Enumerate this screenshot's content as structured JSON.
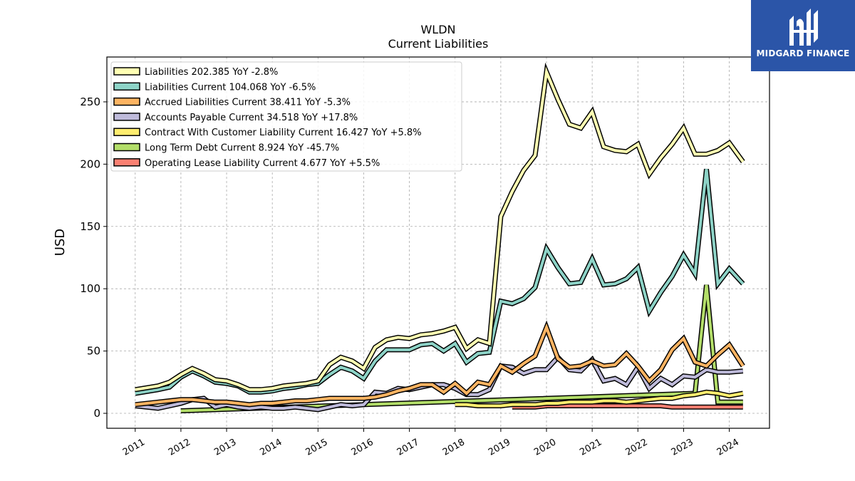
{
  "brand": {
    "name": "MIDGARD FINANCE",
    "color": "#2b55a8"
  },
  "chart_data": {
    "type": "line",
    "title": "WLDN",
    "subtitle": "Current  Liabilities",
    "ylabel": "USD",
    "xlabel": "",
    "ylim": [
      -12,
      286
    ],
    "xlim": [
      2010.38,
      2024.88
    ],
    "yticks": [
      0,
      50,
      100,
      150,
      200,
      250
    ],
    "xticks": [
      "2011",
      "2012",
      "2013",
      "2014",
      "2015",
      "2016",
      "2017",
      "2018",
      "2019",
      "2020",
      "2021",
      "2022",
      "2023",
      "2024"
    ],
    "grid": true,
    "legend_position": "top-left",
    "series": [
      {
        "name": "Liabilities  202.385 YoY -2.8%",
        "color": "#ffffb3",
        "x": [
          2011.0,
          2011.5,
          2011.75,
          2012.0,
          2012.25,
          2012.5,
          2012.75,
          2013.0,
          2013.25,
          2013.5,
          2013.75,
          2014.0,
          2014.25,
          2014.5,
          2014.75,
          2015.0,
          2015.25,
          2015.5,
          2015.75,
          2016.0,
          2016.25,
          2016.5,
          2016.75,
          2017.0,
          2017.25,
          2017.5,
          2017.75,
          2018.0,
          2018.25,
          2018.5,
          2018.75,
          2019.0,
          2019.25,
          2019.5,
          2019.75,
          2020.0,
          2020.25,
          2020.5,
          2020.75,
          2021.0,
          2021.25,
          2021.5,
          2021.75,
          2022.0,
          2022.25,
          2022.5,
          2022.75,
          2023.0,
          2023.25,
          2023.5,
          2023.75,
          2024.0,
          2024.3
        ],
        "values": [
          19,
          22,
          25,
          31,
          36,
          32,
          27,
          26,
          23,
          19,
          19,
          20,
          22,
          23,
          24,
          26,
          39,
          45,
          42,
          36,
          53,
          59,
          61,
          60,
          63,
          64,
          66,
          69,
          52,
          59,
          56,
          158,
          178,
          195,
          207,
          274,
          252,
          232,
          229,
          242,
          214,
          211,
          210,
          216,
          192,
          205,
          216,
          229,
          208,
          208,
          211,
          217,
          202
        ]
      },
      {
        "name": "Liabilities Current  104.068 YoY -6.5%",
        "color": "#8dd3c7",
        "x": [
          2011.0,
          2011.5,
          2011.75,
          2012.0,
          2012.25,
          2012.5,
          2012.75,
          2013.0,
          2013.25,
          2013.5,
          2013.75,
          2014.0,
          2014.25,
          2014.5,
          2014.75,
          2015.0,
          2015.25,
          2015.5,
          2015.75,
          2016.0,
          2016.25,
          2016.5,
          2016.75,
          2017.0,
          2017.25,
          2017.5,
          2017.75,
          2018.0,
          2018.25,
          2018.5,
          2018.75,
          2019.0,
          2019.25,
          2019.5,
          2019.75,
          2020.0,
          2020.25,
          2020.5,
          2020.75,
          2021.0,
          2021.25,
          2021.5,
          2021.75,
          2022.0,
          2022.25,
          2022.5,
          2022.75,
          2023.0,
          2023.25,
          2023.5,
          2023.75,
          2024.0,
          2024.3
        ],
        "values": [
          16,
          19,
          21,
          29,
          34,
          30,
          25,
          24,
          22,
          17,
          17,
          18,
          20,
          21,
          23,
          24,
          31,
          37,
          34,
          28,
          42,
          51,
          51,
          51,
          55,
          56,
          50,
          56,
          41,
          48,
          49,
          90,
          88,
          92,
          101,
          132,
          117,
          104,
          105,
          124,
          103,
          104,
          108,
          117,
          82,
          97,
          110,
          127,
          112,
          196,
          104,
          116,
          104
        ]
      },
      {
        "name": "Accrued Liabilities Current  38.411 YoY -5.3%",
        "color": "#fdb462",
        "x": [
          2011.0,
          2011.5,
          2011.75,
          2012.0,
          2012.25,
          2012.5,
          2012.75,
          2013.0,
          2013.25,
          2013.5,
          2013.75,
          2014.0,
          2014.25,
          2014.5,
          2014.75,
          2015.0,
          2015.25,
          2015.5,
          2015.75,
          2016.0,
          2016.25,
          2016.5,
          2016.75,
          2017.0,
          2017.25,
          2017.5,
          2017.75,
          2018.0,
          2018.25,
          2018.5,
          2018.75,
          2019.0,
          2019.25,
          2019.5,
          2019.75,
          2020.0,
          2020.25,
          2020.5,
          2020.75,
          2021.0,
          2021.25,
          2021.5,
          2021.75,
          2022.0,
          2022.25,
          2022.5,
          2022.75,
          2023.0,
          2023.25,
          2023.5,
          2023.75,
          2024.0,
          2024.3
        ],
        "values": [
          7,
          9,
          10,
          11,
          11,
          10,
          9,
          9,
          8,
          7,
          8,
          8,
          9,
          10,
          10,
          11,
          12,
          12,
          12,
          12,
          13,
          15,
          18,
          20,
          23,
          23,
          17,
          24,
          16,
          25,
          23,
          38,
          33,
          40,
          46,
          69,
          44,
          37,
          38,
          42,
          38,
          39,
          48,
          38,
          26,
          35,
          51,
          60,
          41,
          38,
          47,
          55,
          38
        ]
      },
      {
        "name": "Accounts Payable Current  34.518 YoY +17.8%",
        "color": "#bebada",
        "x": [
          2011.0,
          2011.5,
          2011.75,
          2012.0,
          2012.25,
          2012.5,
          2012.75,
          2013.0,
          2013.25,
          2013.5,
          2013.75,
          2014.0,
          2014.25,
          2014.5,
          2014.75,
          2015.0,
          2015.25,
          2015.5,
          2015.75,
          2016.0,
          2016.25,
          2016.5,
          2016.75,
          2017.0,
          2017.25,
          2017.5,
          2017.75,
          2018.0,
          2018.25,
          2018.5,
          2018.75,
          2019.0,
          2019.25,
          2019.5,
          2019.75,
          2020.0,
          2020.25,
          2020.5,
          2020.75,
          2021.0,
          2021.25,
          2021.5,
          2021.75,
          2022.0,
          2022.25,
          2022.5,
          2022.75,
          2023.0,
          2023.25,
          2023.5,
          2023.75,
          2024.0,
          2024.3
        ],
        "values": [
          6,
          4,
          6,
          8,
          11,
          12,
          5,
          7,
          5,
          4,
          5,
          4,
          4,
          5,
          4,
          3,
          5,
          7,
          6,
          7,
          17,
          16,
          20,
          19,
          21,
          23,
          23,
          20,
          15,
          15,
          19,
          38,
          37,
          32,
          35,
          35,
          45,
          35,
          34,
          43,
          26,
          28,
          23,
          37,
          20,
          28,
          23,
          30,
          29,
          35,
          33,
          33,
          34
        ]
      },
      {
        "name": "Contract With Customer Liability Current  16.427 YoY +5.8%",
        "color": "#ffed6f",
        "x": [
          2018.0,
          2018.25,
          2018.5,
          2018.75,
          2019.0,
          2019.25,
          2019.5,
          2019.75,
          2020.0,
          2020.25,
          2020.5,
          2020.75,
          2021.0,
          2021.25,
          2021.5,
          2021.75,
          2022.0,
          2022.25,
          2022.5,
          2022.75,
          2023.0,
          2023.25,
          2023.5,
          2023.75,
          2024.0,
          2024.3
        ],
        "values": [
          7,
          7,
          6,
          6,
          6,
          7,
          7,
          7,
          8,
          8,
          9,
          9,
          9,
          10,
          10,
          9,
          10,
          11,
          12,
          12,
          14,
          15,
          17,
          16,
          14,
          16
        ]
      },
      {
        "name": "Long Term Debt Current  8.924 YoY -45.7%",
        "color": "#b3de69",
        "x": [
          2012.0,
          2023.25,
          2023.5,
          2023.75,
          2024.0,
          2024.3
        ],
        "values": [
          2,
          16,
          103,
          9,
          9,
          9
        ]
      },
      {
        "name": "Operating Lease Liability Current  4.677 YoY +5.5%",
        "color": "#fb8072",
        "x": [
          2019.25,
          2019.5,
          2019.75,
          2020.0,
          2020.25,
          2020.5,
          2020.75,
          2021.0,
          2021.25,
          2021.5,
          2021.75,
          2022.0,
          2022.25,
          2022.5,
          2022.75,
          2023.0,
          2023.25,
          2023.5,
          2023.75,
          2024.0,
          2024.3
        ],
        "values": [
          5,
          5,
          5,
          6,
          6,
          6,
          6,
          6,
          6,
          6,
          6,
          6,
          6,
          6,
          5,
          5,
          5,
          5,
          5,
          5,
          5
        ]
      }
    ]
  }
}
